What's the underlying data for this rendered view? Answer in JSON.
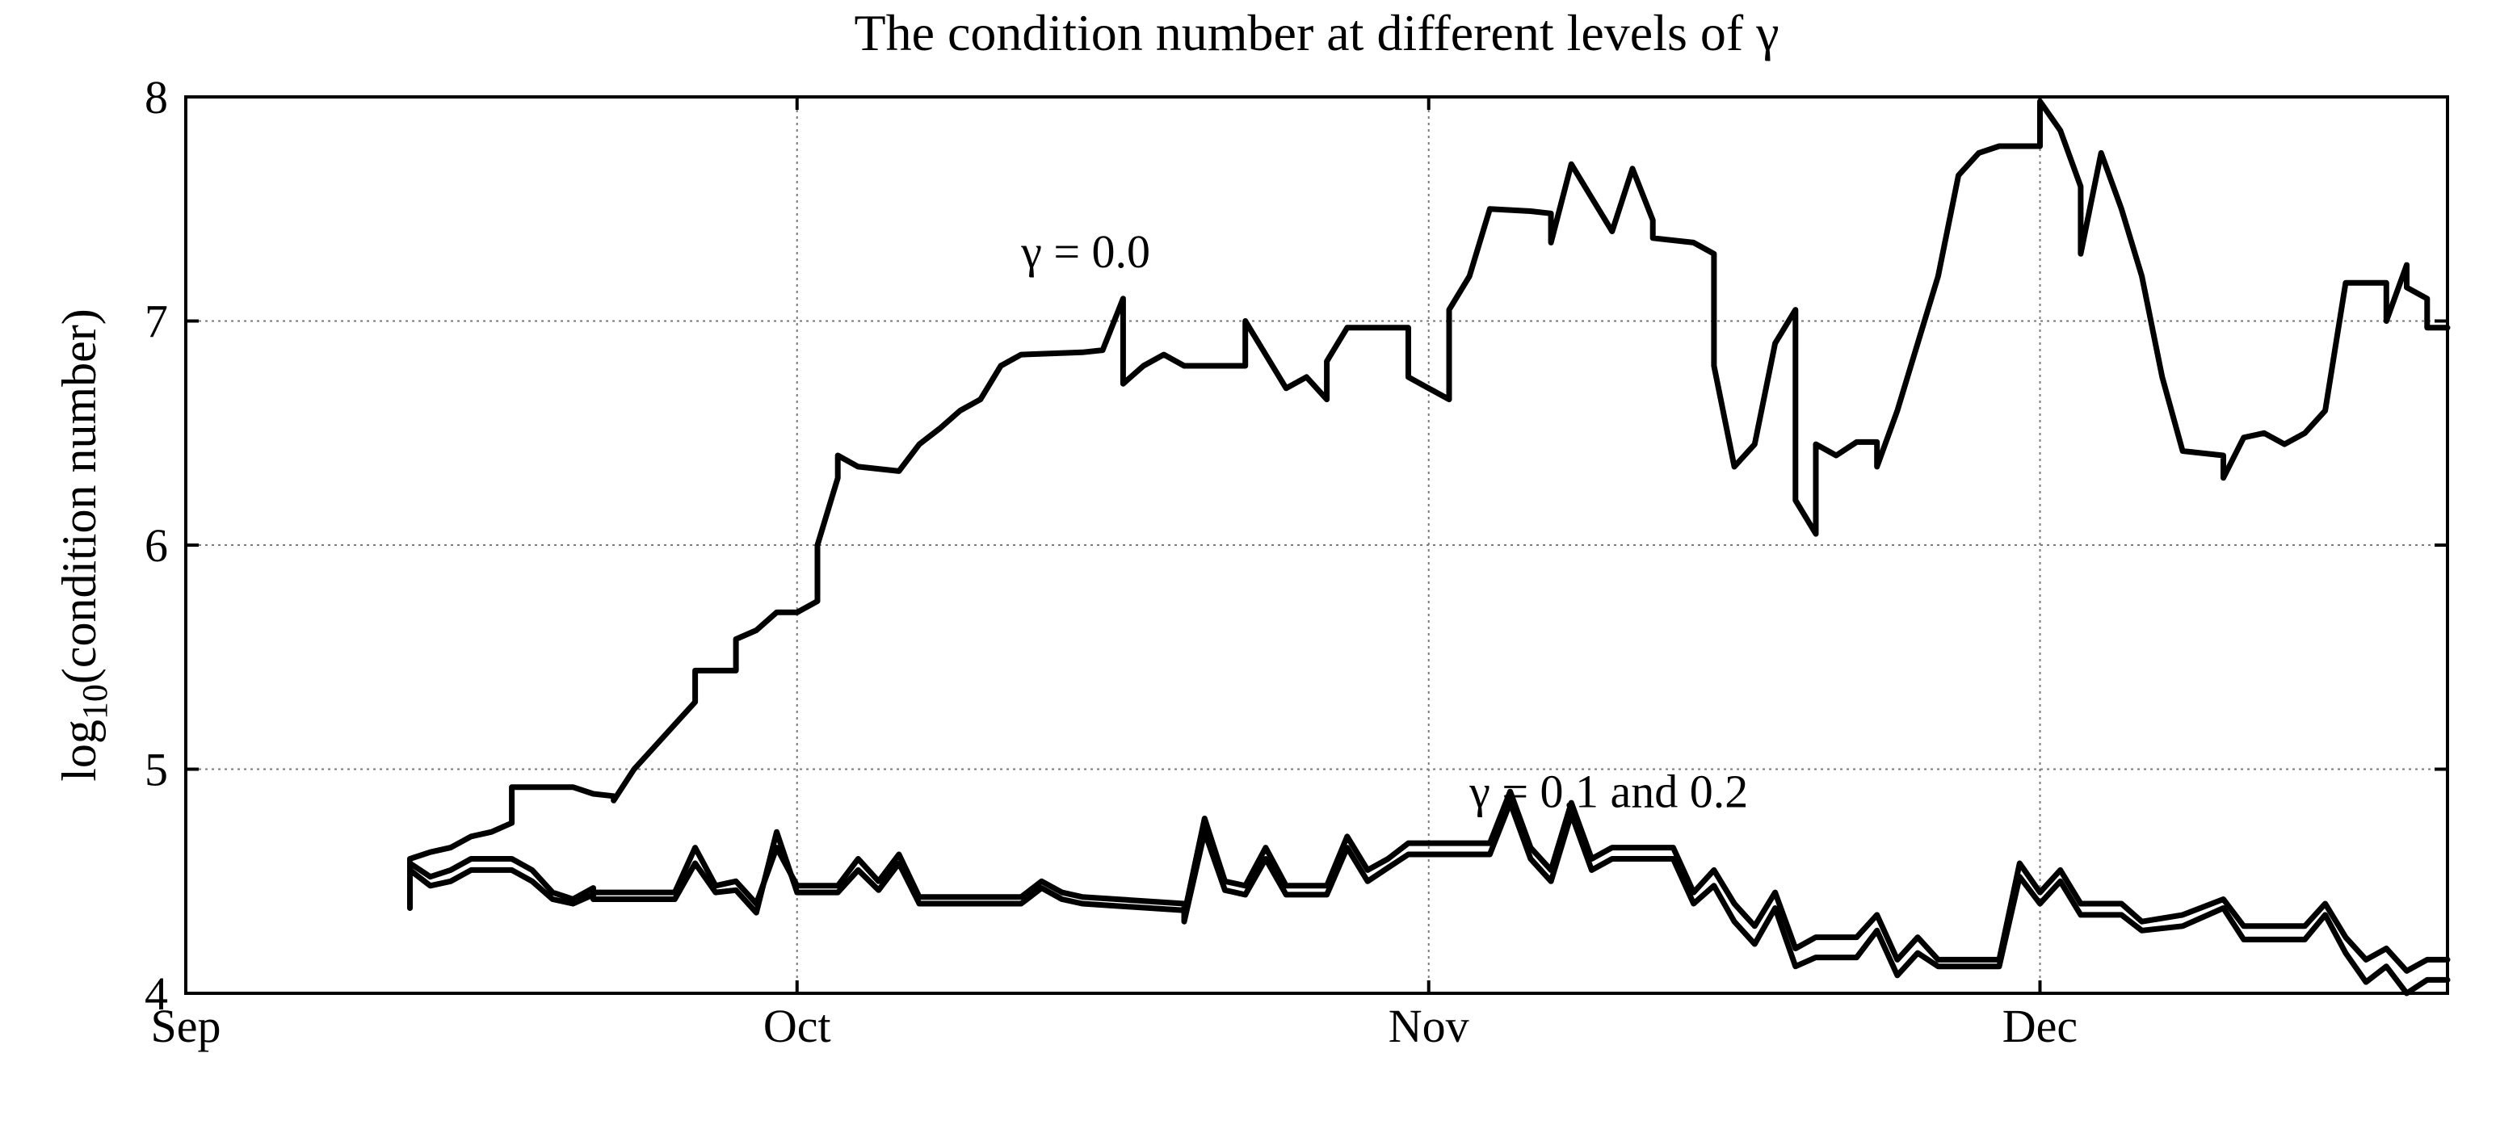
{
  "chart_data": {
    "type": "line",
    "title": "The condition number at different levels of γ",
    "ylabel": "log10(condition number)",
    "xlabel": "",
    "x_axis": "date",
    "x_range": [
      "2009-09-01",
      "2009-12-21"
    ],
    "ylim": [
      4,
      8
    ],
    "x_ticks": [
      {
        "date": "2009-09-01",
        "label": "Sep"
      },
      {
        "date": "2009-10-01",
        "label": "Oct"
      },
      {
        "date": "2009-11-01",
        "label": "Nov"
      },
      {
        "date": "2009-12-01",
        "label": "Dec"
      }
    ],
    "y_ticks": [
      4,
      5,
      6,
      7,
      8
    ],
    "grid": true,
    "legend": "none",
    "line_color": "#000000",
    "annotations": [
      {
        "text": "γ = 0.0",
        "date": "2009-10-12",
        "y": 7.24
      },
      {
        "text": "γ = 0.1 and 0.2",
        "date": "2009-11-03",
        "y": 4.83
      }
    ],
    "series": [
      {
        "points": [
          [
            "2009-09-12",
            4.38
          ],
          [
            "2009-09-12",
            4.6
          ],
          [
            "2009-09-13",
            4.63
          ],
          [
            "2009-09-14",
            4.65
          ],
          [
            "2009-09-15",
            4.7
          ],
          [
            "2009-09-16",
            4.72
          ],
          [
            "2009-09-17",
            4.76
          ],
          [
            "2009-09-17",
            4.92
          ],
          [
            "2009-09-20",
            4.92
          ],
          [
            "2009-09-21",
            4.89
          ],
          [
            "2009-09-22",
            4.88
          ],
          [
            "2009-09-22",
            4.86
          ],
          [
            "2009-09-23",
            5.0
          ],
          [
            "2009-09-24",
            5.1
          ],
          [
            "2009-09-25",
            5.2
          ],
          [
            "2009-09-26",
            5.3
          ],
          [
            "2009-09-26",
            5.44
          ],
          [
            "2009-09-28",
            5.44
          ],
          [
            "2009-09-28",
            5.58
          ],
          [
            "2009-09-29",
            5.62
          ],
          [
            "2009-09-30",
            5.7
          ],
          [
            "2009-10-01",
            5.7
          ],
          [
            "2009-10-02",
            5.75
          ],
          [
            "2009-10-02",
            6.0
          ],
          [
            "2009-10-03",
            6.3
          ],
          [
            "2009-10-03",
            6.4
          ],
          [
            "2009-10-04",
            6.35
          ],
          [
            "2009-10-06",
            6.33
          ],
          [
            "2009-10-07",
            6.45
          ],
          [
            "2009-10-08",
            6.52
          ],
          [
            "2009-10-09",
            6.6
          ],
          [
            "2009-10-10",
            6.65
          ],
          [
            "2009-10-11",
            6.8
          ],
          [
            "2009-10-12",
            6.85
          ],
          [
            "2009-10-15",
            6.86
          ],
          [
            "2009-10-16",
            6.87
          ],
          [
            "2009-10-17",
            7.1
          ],
          [
            "2009-10-17",
            6.72
          ],
          [
            "2009-10-18",
            6.8
          ],
          [
            "2009-10-19",
            6.85
          ],
          [
            "2009-10-20",
            6.8
          ],
          [
            "2009-10-23",
            6.8
          ],
          [
            "2009-10-23",
            7.0
          ],
          [
            "2009-10-24",
            6.85
          ],
          [
            "2009-10-25",
            6.7
          ],
          [
            "2009-10-26",
            6.75
          ],
          [
            "2009-10-27",
            6.65
          ],
          [
            "2009-10-27",
            6.82
          ],
          [
            "2009-10-28",
            6.97
          ],
          [
            "2009-10-31",
            6.97
          ],
          [
            "2009-10-31",
            6.75
          ],
          [
            "2009-11-01",
            6.7
          ],
          [
            "2009-11-02",
            6.65
          ],
          [
            "2009-11-02",
            7.05
          ],
          [
            "2009-11-03",
            7.2
          ],
          [
            "2009-11-04",
            7.5
          ],
          [
            "2009-11-06",
            7.49
          ],
          [
            "2009-11-07",
            7.48
          ],
          [
            "2009-11-07",
            7.35
          ],
          [
            "2009-11-08",
            7.7
          ],
          [
            "2009-11-09",
            7.55
          ],
          [
            "2009-11-10",
            7.4
          ],
          [
            "2009-11-11",
            7.68
          ],
          [
            "2009-11-12",
            7.45
          ],
          [
            "2009-11-12",
            7.37
          ],
          [
            "2009-11-14",
            7.35
          ],
          [
            "2009-11-15",
            7.3
          ],
          [
            "2009-11-15",
            6.8
          ],
          [
            "2009-11-16",
            6.35
          ],
          [
            "2009-11-17",
            6.45
          ],
          [
            "2009-11-18",
            6.9
          ],
          [
            "2009-11-19",
            7.05
          ],
          [
            "2009-11-19",
            6.2
          ],
          [
            "2009-11-20",
            6.05
          ],
          [
            "2009-11-20",
            6.45
          ],
          [
            "2009-11-21",
            6.4
          ],
          [
            "2009-11-22",
            6.46
          ],
          [
            "2009-11-23",
            6.46
          ],
          [
            "2009-11-23",
            6.35
          ],
          [
            "2009-11-24",
            6.6
          ],
          [
            "2009-11-25",
            6.9
          ],
          [
            "2009-11-26",
            7.2
          ],
          [
            "2009-11-27",
            7.65
          ],
          [
            "2009-11-28",
            7.75
          ],
          [
            "2009-11-29",
            7.78
          ],
          [
            "2009-12-01",
            7.78
          ],
          [
            "2009-12-01",
            7.98
          ],
          [
            "2009-12-02",
            7.85
          ],
          [
            "2009-12-03",
            7.6
          ],
          [
            "2009-12-03",
            7.3
          ],
          [
            "2009-12-04",
            7.75
          ],
          [
            "2009-12-05",
            7.5
          ],
          [
            "2009-12-06",
            7.2
          ],
          [
            "2009-12-07",
            6.75
          ],
          [
            "2009-12-08",
            6.42
          ],
          [
            "2009-12-10",
            6.4
          ],
          [
            "2009-12-10",
            6.3
          ],
          [
            "2009-12-11",
            6.48
          ],
          [
            "2009-12-12",
            6.5
          ],
          [
            "2009-12-13",
            6.45
          ],
          [
            "2009-12-14",
            6.5
          ],
          [
            "2009-12-15",
            6.6
          ],
          [
            "2009-12-16",
            7.17
          ],
          [
            "2009-12-18",
            7.17
          ],
          [
            "2009-12-18",
            7.0
          ],
          [
            "2009-12-19",
            7.25
          ],
          [
            "2009-12-19",
            7.15
          ],
          [
            "2009-12-20",
            7.1
          ],
          [
            "2009-12-20",
            6.97
          ],
          [
            "2009-12-21",
            6.97
          ]
        ]
      },
      {
        "points": [
          [
            "2009-09-12",
            4.4
          ],
          [
            "2009-09-12",
            4.58
          ],
          [
            "2009-09-13",
            4.52
          ],
          [
            "2009-09-14",
            4.55
          ],
          [
            "2009-09-15",
            4.6
          ],
          [
            "2009-09-17",
            4.6
          ],
          [
            "2009-09-18",
            4.55
          ],
          [
            "2009-09-19",
            4.45
          ],
          [
            "2009-09-20",
            4.42
          ],
          [
            "2009-09-21",
            4.47
          ],
          [
            "2009-09-21",
            4.45
          ],
          [
            "2009-09-25",
            4.45
          ],
          [
            "2009-09-26",
            4.65
          ],
          [
            "2009-09-27",
            4.48
          ],
          [
            "2009-09-28",
            4.5
          ],
          [
            "2009-09-29",
            4.4
          ],
          [
            "2009-09-30",
            4.65
          ],
          [
            "2009-10-01",
            4.48
          ],
          [
            "2009-10-03",
            4.48
          ],
          [
            "2009-10-04",
            4.6
          ],
          [
            "2009-10-05",
            4.5
          ],
          [
            "2009-10-06",
            4.62
          ],
          [
            "2009-10-07",
            4.43
          ],
          [
            "2009-10-12",
            4.43
          ],
          [
            "2009-10-13",
            4.5
          ],
          [
            "2009-10-14",
            4.45
          ],
          [
            "2009-10-15",
            4.43
          ],
          [
            "2009-10-20",
            4.4
          ],
          [
            "2009-10-20",
            4.35
          ],
          [
            "2009-10-21",
            4.78
          ],
          [
            "2009-10-22",
            4.5
          ],
          [
            "2009-10-23",
            4.48
          ],
          [
            "2009-10-24",
            4.65
          ],
          [
            "2009-10-25",
            4.48
          ],
          [
            "2009-10-27",
            4.48
          ],
          [
            "2009-10-28",
            4.7
          ],
          [
            "2009-10-29",
            4.55
          ],
          [
            "2009-10-30",
            4.6
          ],
          [
            "2009-10-31",
            4.67
          ],
          [
            "2009-11-04",
            4.67
          ],
          [
            "2009-11-05",
            4.9
          ],
          [
            "2009-11-06",
            4.65
          ],
          [
            "2009-11-07",
            4.55
          ],
          [
            "2009-11-08",
            4.85
          ],
          [
            "2009-11-09",
            4.6
          ],
          [
            "2009-11-10",
            4.65
          ],
          [
            "2009-11-13",
            4.65
          ],
          [
            "2009-11-14",
            4.45
          ],
          [
            "2009-11-15",
            4.55
          ],
          [
            "2009-11-16",
            4.4
          ],
          [
            "2009-11-17",
            4.3
          ],
          [
            "2009-11-18",
            4.45
          ],
          [
            "2009-11-19",
            4.2
          ],
          [
            "2009-11-20",
            4.25
          ],
          [
            "2009-11-22",
            4.25
          ],
          [
            "2009-11-23",
            4.35
          ],
          [
            "2009-11-24",
            4.15
          ],
          [
            "2009-11-25",
            4.25
          ],
          [
            "2009-11-26",
            4.15
          ],
          [
            "2009-11-29",
            4.15
          ],
          [
            "2009-11-30",
            4.58
          ],
          [
            "2009-12-01",
            4.45
          ],
          [
            "2009-12-02",
            4.55
          ],
          [
            "2009-12-03",
            4.4
          ],
          [
            "2009-12-05",
            4.4
          ],
          [
            "2009-12-06",
            4.32
          ],
          [
            "2009-12-08",
            4.35
          ],
          [
            "2009-12-10",
            4.42
          ],
          [
            "2009-12-11",
            4.3
          ],
          [
            "2009-12-14",
            4.3
          ],
          [
            "2009-12-15",
            4.4
          ],
          [
            "2009-12-16",
            4.25
          ],
          [
            "2009-12-17",
            4.15
          ],
          [
            "2009-12-18",
            4.2
          ],
          [
            "2009-12-19",
            4.1
          ],
          [
            "2009-12-20",
            4.15
          ],
          [
            "2009-12-21",
            4.15
          ]
        ]
      },
      {
        "points": [
          [
            "2009-09-12",
            4.42
          ],
          [
            "2009-09-12",
            4.55
          ],
          [
            "2009-09-13",
            4.48
          ],
          [
            "2009-09-14",
            4.5
          ],
          [
            "2009-09-15",
            4.55
          ],
          [
            "2009-09-17",
            4.55
          ],
          [
            "2009-09-18",
            4.5
          ],
          [
            "2009-09-19",
            4.42
          ],
          [
            "2009-09-20",
            4.4
          ],
          [
            "2009-09-21",
            4.44
          ],
          [
            "2009-09-21",
            4.42
          ],
          [
            "2009-09-25",
            4.42
          ],
          [
            "2009-09-26",
            4.58
          ],
          [
            "2009-09-27",
            4.45
          ],
          [
            "2009-09-28",
            4.46
          ],
          [
            "2009-09-29",
            4.36
          ],
          [
            "2009-09-30",
            4.72
          ],
          [
            "2009-10-01",
            4.45
          ],
          [
            "2009-10-03",
            4.45
          ],
          [
            "2009-10-04",
            4.55
          ],
          [
            "2009-10-05",
            4.46
          ],
          [
            "2009-10-06",
            4.58
          ],
          [
            "2009-10-07",
            4.4
          ],
          [
            "2009-10-12",
            4.4
          ],
          [
            "2009-10-13",
            4.47
          ],
          [
            "2009-10-14",
            4.42
          ],
          [
            "2009-10-15",
            4.4
          ],
          [
            "2009-10-20",
            4.37
          ],
          [
            "2009-10-20",
            4.32
          ],
          [
            "2009-10-21",
            4.72
          ],
          [
            "2009-10-22",
            4.46
          ],
          [
            "2009-10-23",
            4.44
          ],
          [
            "2009-10-24",
            4.6
          ],
          [
            "2009-10-25",
            4.44
          ],
          [
            "2009-10-27",
            4.44
          ],
          [
            "2009-10-28",
            4.65
          ],
          [
            "2009-10-29",
            4.5
          ],
          [
            "2009-10-30",
            4.56
          ],
          [
            "2009-10-31",
            4.62
          ],
          [
            "2009-11-04",
            4.62
          ],
          [
            "2009-11-05",
            4.85
          ],
          [
            "2009-11-06",
            4.6
          ],
          [
            "2009-11-07",
            4.5
          ],
          [
            "2009-11-08",
            4.8
          ],
          [
            "2009-11-09",
            4.55
          ],
          [
            "2009-11-10",
            4.6
          ],
          [
            "2009-11-13",
            4.6
          ],
          [
            "2009-11-14",
            4.4
          ],
          [
            "2009-11-15",
            4.48
          ],
          [
            "2009-11-16",
            4.32
          ],
          [
            "2009-11-17",
            4.22
          ],
          [
            "2009-11-18",
            4.38
          ],
          [
            "2009-11-19",
            4.12
          ],
          [
            "2009-11-20",
            4.16
          ],
          [
            "2009-11-22",
            4.16
          ],
          [
            "2009-11-23",
            4.28
          ],
          [
            "2009-11-24",
            4.08
          ],
          [
            "2009-11-25",
            4.18
          ],
          [
            "2009-11-26",
            4.12
          ],
          [
            "2009-11-29",
            4.12
          ],
          [
            "2009-11-30",
            4.52
          ],
          [
            "2009-12-01",
            4.4
          ],
          [
            "2009-12-02",
            4.5
          ],
          [
            "2009-12-03",
            4.35
          ],
          [
            "2009-12-05",
            4.35
          ],
          [
            "2009-12-06",
            4.28
          ],
          [
            "2009-12-08",
            4.3
          ],
          [
            "2009-12-10",
            4.38
          ],
          [
            "2009-12-11",
            4.24
          ],
          [
            "2009-12-14",
            4.24
          ],
          [
            "2009-12-15",
            4.35
          ],
          [
            "2009-12-16",
            4.18
          ],
          [
            "2009-12-17",
            4.05
          ],
          [
            "2009-12-18",
            4.12
          ],
          [
            "2009-12-19",
            4.0
          ],
          [
            "2009-12-20",
            4.06
          ],
          [
            "2009-12-21",
            4.06
          ]
        ]
      }
    ]
  }
}
